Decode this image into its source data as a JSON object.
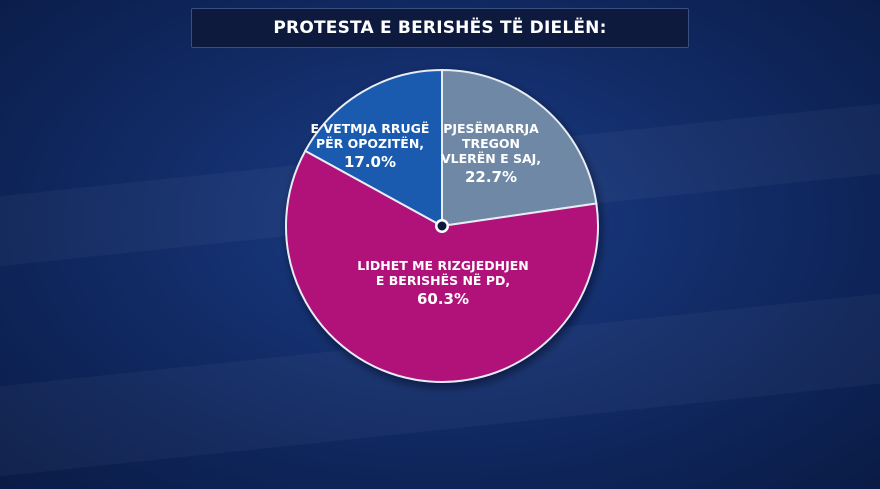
{
  "title": "PROTESTA E BERISHËS TË DIELËN:",
  "chart_data": {
    "type": "pie",
    "title": "PROTESTA E BERISHËS TË DIELËN:",
    "slices": [
      {
        "label_lines": [
          "PJESËMARRJA",
          "TREGON",
          "VLERËN E SAJ,"
        ],
        "value": 22.7,
        "value_text": "22.7%",
        "color": "#6f88a6"
      },
      {
        "label_lines": [
          "LIDHET ME RIZGJEDHJEN",
          "E BERISHËS NË PD,"
        ],
        "value": 60.3,
        "value_text": "60.3%",
        "color": "#b0127a"
      },
      {
        "label_lines": [
          "E VETMJA RRUGË",
          "PËR OPOZITËN,"
        ],
        "value": 17.0,
        "value_text": "17.0%",
        "color": "#1a5bb0"
      }
    ]
  }
}
